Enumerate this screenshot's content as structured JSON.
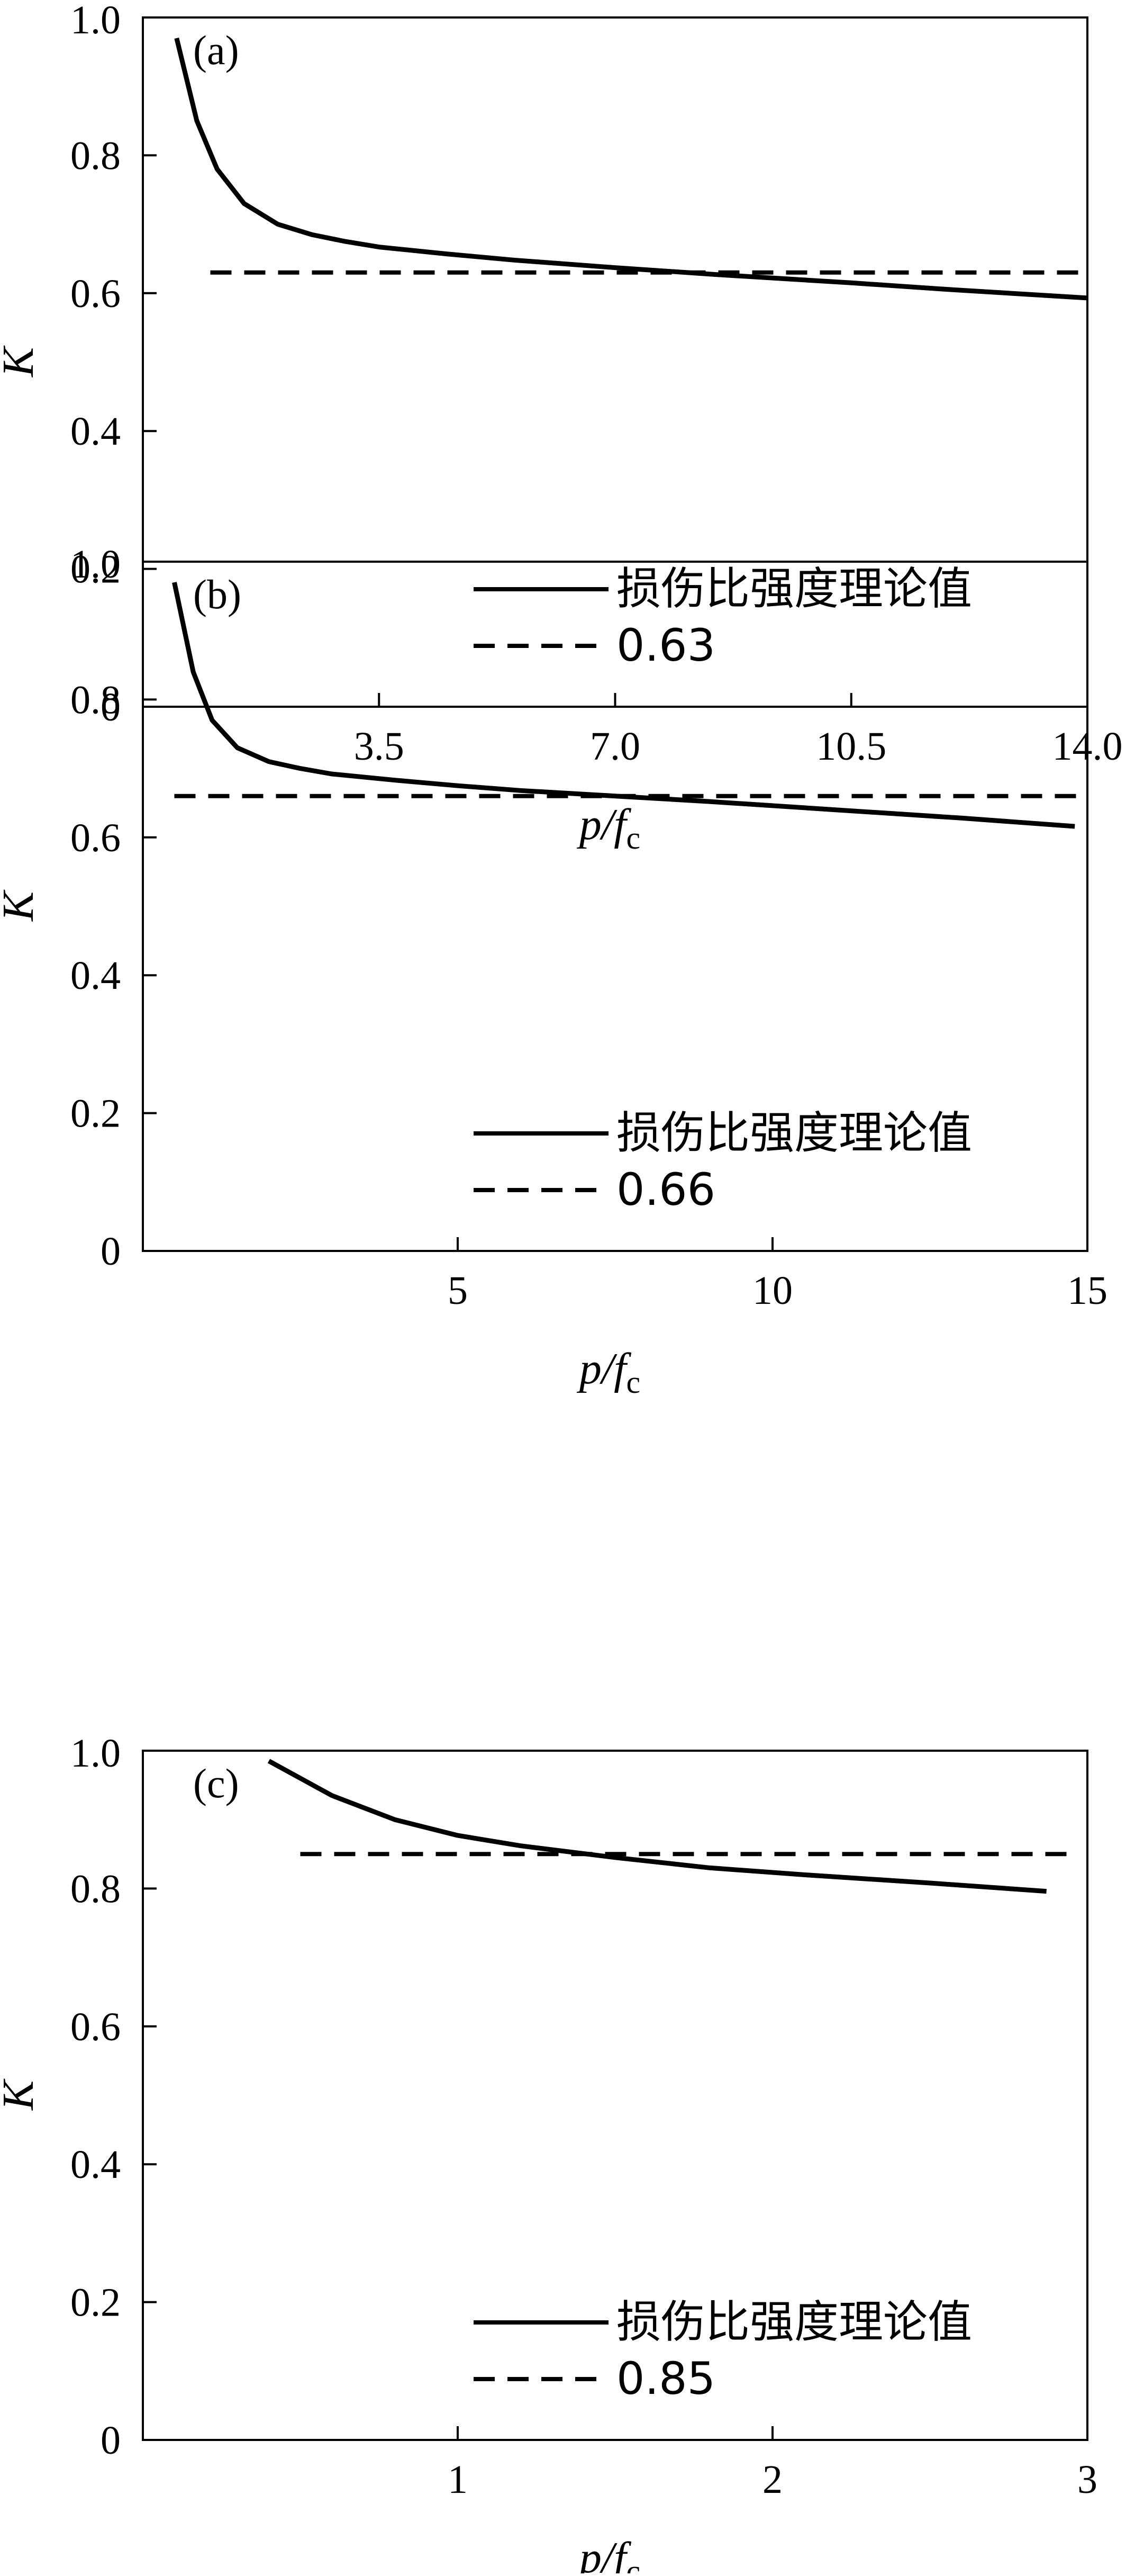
{
  "colors": {
    "line": "#000000",
    "background": "#ffffff"
  },
  "chart_data": [
    {
      "type": "line",
      "panel_label": "(a)",
      "xlabel": {
        "main": "p/f",
        "sub": "c"
      },
      "ylabel": "K",
      "xlim": [
        0,
        14.0
      ],
      "ylim": [
        0,
        1.0
      ],
      "x_ticks": [
        3.5,
        7.0,
        10.5,
        14.0
      ],
      "x_tick_labels": [
        "3.5",
        "7.0",
        "10.5",
        "14.0"
      ],
      "y_ticks": [
        0,
        0.2,
        0.4,
        0.6,
        0.8,
        1.0
      ],
      "y_tick_labels": [
        "0",
        "0.2",
        "0.4",
        "0.6",
        "0.8",
        "1.0"
      ],
      "legend_position": "bottom-right",
      "series": [
        {
          "name": "损伤比强度理论值",
          "style": "solid",
          "x": [
            0.5,
            0.8,
            1.1,
            1.5,
            2.0,
            2.5,
            3.0,
            3.5,
            4.5,
            5.5,
            7.0,
            8.5,
            10.5,
            12.0,
            14.0
          ],
          "y": [
            0.97,
            0.85,
            0.78,
            0.73,
            0.7,
            0.685,
            0.675,
            0.667,
            0.657,
            0.648,
            0.637,
            0.627,
            0.615,
            0.605,
            0.593
          ]
        },
        {
          "name": "0.63",
          "style": "dashed",
          "x": [
            1.0,
            14.0
          ],
          "y": [
            0.63,
            0.63
          ]
        }
      ]
    },
    {
      "type": "line",
      "panel_label": "(b)",
      "xlabel": {
        "main": "p/f",
        "sub": "c"
      },
      "ylabel": "K",
      "xlim": [
        0,
        15
      ],
      "ylim": [
        0,
        1.0
      ],
      "x_ticks": [
        5,
        10,
        15
      ],
      "x_tick_labels": [
        "5",
        "10",
        "15"
      ],
      "y_ticks": [
        0,
        0.2,
        0.4,
        0.6,
        0.8,
        1.0
      ],
      "y_tick_labels": [
        "0",
        "0.2",
        "0.4",
        "0.6",
        "0.8",
        "1.0"
      ],
      "legend_position": "bottom-right",
      "series": [
        {
          "name": "损伤比强度理论值",
          "style": "solid",
          "x": [
            0.5,
            0.8,
            1.1,
            1.5,
            2.0,
            2.5,
            3.0,
            4.0,
            5.0,
            6.0,
            7.5,
            9.0,
            11.0,
            13.0,
            14.8
          ],
          "y": [
            0.97,
            0.84,
            0.77,
            0.73,
            0.71,
            0.7,
            0.692,
            0.683,
            0.675,
            0.668,
            0.66,
            0.652,
            0.64,
            0.628,
            0.616
          ]
        },
        {
          "name": "0.66",
          "style": "dashed",
          "x": [
            0.5,
            15.0
          ],
          "y": [
            0.66,
            0.66
          ]
        }
      ]
    },
    {
      "type": "line",
      "panel_label": "(c)",
      "xlabel": {
        "main": "p/f",
        "sub": "c"
      },
      "ylabel": "K",
      "xlim": [
        0,
        3
      ],
      "ylim": [
        0,
        1.0
      ],
      "x_ticks": [
        1,
        2,
        3
      ],
      "x_tick_labels": [
        "1",
        "2",
        "3"
      ],
      "y_ticks": [
        0,
        0.2,
        0.4,
        0.6,
        0.8,
        1.0
      ],
      "y_tick_labels": [
        "0",
        "0.2",
        "0.4",
        "0.6",
        "0.8",
        "1.0"
      ],
      "legend_position": "bottom-right",
      "series": [
        {
          "name": "损伤比强度理论值",
          "style": "solid",
          "x": [
            0.4,
            0.6,
            0.8,
            1.0,
            1.2,
            1.5,
            1.8,
            2.1,
            2.5,
            2.87
          ],
          "y": [
            0.985,
            0.935,
            0.9,
            0.877,
            0.862,
            0.845,
            0.83,
            0.82,
            0.808,
            0.796
          ]
        },
        {
          "name": "0.85",
          "style": "dashed",
          "x": [
            0.5,
            2.95
          ],
          "y": [
            0.85,
            0.85
          ]
        }
      ]
    }
  ]
}
